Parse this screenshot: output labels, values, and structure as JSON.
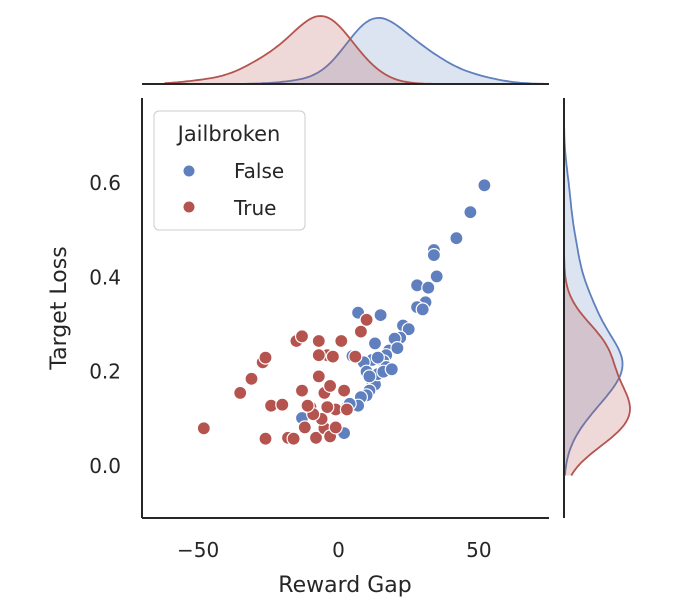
{
  "chart_data": {
    "type": "scatter",
    "xlabel": "Reward Gap",
    "ylabel": "Target Loss",
    "xlim": [
      -70,
      75
    ],
    "ylim": [
      -0.11,
      0.78
    ],
    "xticks": [
      -50,
      0,
      50
    ],
    "xtick_labels": [
      "−50",
      "0",
      "50"
    ],
    "yticks": [
      0.0,
      0.2,
      0.4,
      0.6
    ],
    "ytick_labels": [
      "0.0",
      "0.2",
      "0.4",
      "0.6"
    ],
    "grid": false,
    "legend": {
      "title": "Jailbroken",
      "placement": "top-left"
    },
    "marginals": {
      "top": "kde of Reward Gap by hue",
      "right": "kde of Target Loss by hue"
    },
    "series": [
      {
        "name": "False",
        "color": "#5f7fbe",
        "points": [
          [
            52,
            0.595
          ],
          [
            47,
            0.538
          ],
          [
            42,
            0.483
          ],
          [
            34,
            0.458
          ],
          [
            34,
            0.447
          ],
          [
            35,
            0.402
          ],
          [
            28,
            0.383
          ],
          [
            32,
            0.378
          ],
          [
            31,
            0.347
          ],
          [
            28,
            0.337
          ],
          [
            30,
            0.332
          ],
          [
            23,
            0.298
          ],
          [
            25,
            0.29
          ],
          [
            22,
            0.272
          ],
          [
            20,
            0.27
          ],
          [
            18,
            0.245
          ],
          [
            17,
            0.235
          ],
          [
            16,
            0.222
          ],
          [
            17,
            0.21
          ],
          [
            12,
            0.225
          ],
          [
            9,
            0.22
          ],
          [
            10,
            0.2
          ],
          [
            12,
            0.18
          ],
          [
            13,
            0.173
          ],
          [
            11,
            0.16
          ],
          [
            10,
            0.15
          ],
          [
            14,
            0.195
          ],
          [
            8,
            0.146
          ],
          [
            7,
            0.128
          ],
          [
            3,
            0.125
          ],
          [
            4,
            0.132
          ],
          [
            -13,
            0.102
          ],
          [
            2,
            0.07
          ],
          [
            5,
            0.233
          ],
          [
            15,
            0.32
          ],
          [
            7,
            0.325
          ],
          [
            13,
            0.26
          ],
          [
            14,
            0.23
          ],
          [
            16,
            0.2
          ],
          [
            19,
            0.205
          ],
          [
            21,
            0.25
          ],
          [
            11,
            0.19
          ]
        ]
      },
      {
        "name": "True",
        "color": "#b5544f",
        "points": [
          [
            -48,
            0.08
          ],
          [
            -35,
            0.155
          ],
          [
            -31,
            0.185
          ],
          [
            -27,
            0.22
          ],
          [
            -26,
            0.23
          ],
          [
            -26,
            0.058
          ],
          [
            -24,
            0.128
          ],
          [
            -20,
            0.13
          ],
          [
            -18,
            0.06
          ],
          [
            -16,
            0.058
          ],
          [
            -15,
            0.265
          ],
          [
            -13,
            0.275
          ],
          [
            -13,
            0.16
          ],
          [
            -12,
            0.082
          ],
          [
            -10,
            0.125
          ],
          [
            -8,
            0.06
          ],
          [
            -7,
            0.265
          ],
          [
            -7,
            0.19
          ],
          [
            -5,
            0.155
          ],
          [
            -5,
            0.08
          ],
          [
            -4,
            0.235
          ],
          [
            -3,
            0.17
          ],
          [
            -3,
            0.063
          ],
          [
            -2,
            0.232
          ],
          [
            -1,
            0.12
          ],
          [
            1,
            0.265
          ],
          [
            2,
            0.16
          ],
          [
            3,
            0.12
          ],
          [
            6,
            0.232
          ],
          [
            8,
            0.285
          ],
          [
            10,
            0.31
          ],
          [
            -6,
            0.1
          ],
          [
            -9,
            0.11
          ],
          [
            -1,
            0.082
          ],
          [
            -11,
            0.128
          ],
          [
            -4,
            0.125
          ],
          [
            -7,
            0.235
          ]
        ]
      }
    ]
  }
}
